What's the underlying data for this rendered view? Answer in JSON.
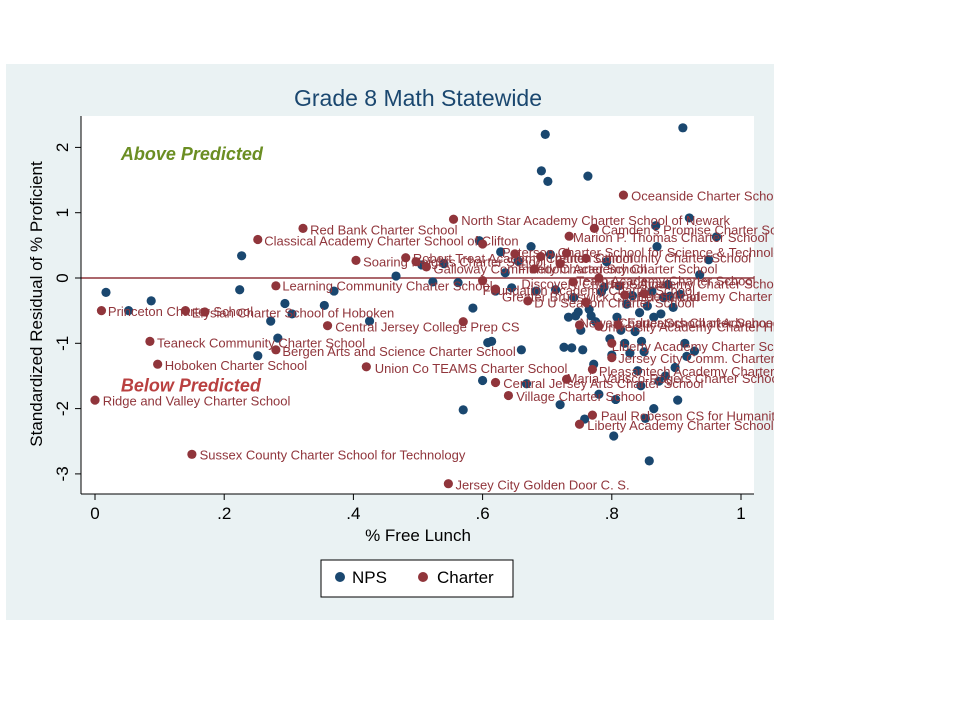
{
  "chart_data": {
    "type": "scatter",
    "title": "Grade 8 Math Statewide",
    "xlabel": "% Free Lunch",
    "ylabel": "Standardized Residual of % Proficient",
    "xlim": [
      0,
      1
    ],
    "ylim": [
      -3.2,
      2.5
    ],
    "xticks": [
      0,
      0.2,
      0.4,
      0.6,
      0.8,
      1
    ],
    "xtick_labels": [
      "0",
      ".2",
      ".4",
      ".6",
      ".8",
      "1"
    ],
    "yticks": [
      -3,
      -2,
      -1,
      0,
      1,
      2
    ],
    "ytick_labels": [
      "-3",
      "-2",
      "-1",
      "0",
      "1",
      "2"
    ],
    "grid": false,
    "reference_line_y": 0,
    "colors": {
      "NPS": "#1a476f",
      "Charter": "#90353b",
      "refline": "#90353b",
      "annotation": "#6b8e23",
      "annotation_below": "#b94040"
    },
    "annotations": [
      {
        "text": "Above Predicted",
        "x": 0.04,
        "y": 1.9,
        "color": "#6b8e23"
      },
      {
        "text": "Below Predicted",
        "x": 0.04,
        "y": -1.65,
        "color": "#b94040"
      }
    ],
    "legend": {
      "position": "bottom",
      "entries": [
        "NPS",
        "Charter"
      ]
    },
    "series": [
      {
        "name": "NPS",
        "points": [
          [
            0.017,
            -0.22
          ],
          [
            0.052,
            -0.5
          ],
          [
            0.087,
            -0.35
          ],
          [
            0.227,
            0.34
          ],
          [
            0.224,
            -0.18
          ],
          [
            0.272,
            -0.66
          ],
          [
            0.283,
            -0.92
          ],
          [
            0.252,
            -1.19
          ],
          [
            0.294,
            -0.39
          ],
          [
            0.305,
            -0.55
          ],
          [
            0.355,
            -0.42
          ],
          [
            0.37,
            -0.2
          ],
          [
            0.425,
            -0.66
          ],
          [
            0.466,
            0.03
          ],
          [
            0.506,
            0.2
          ],
          [
            0.523,
            -0.06
          ],
          [
            0.54,
            0.22
          ],
          [
            0.562,
            -0.07
          ],
          [
            0.57,
            -2.02
          ],
          [
            0.585,
            -0.46
          ],
          [
            0.595,
            0.57
          ],
          [
            0.6,
            -1.57
          ],
          [
            0.608,
            -0.99
          ],
          [
            0.614,
            -0.97
          ],
          [
            0.62,
            -0.2
          ],
          [
            0.628,
            0.4
          ],
          [
            0.635,
            0.08
          ],
          [
            0.645,
            -0.15
          ],
          [
            0.655,
            0.26
          ],
          [
            0.66,
            -1.1
          ],
          [
            0.668,
            -1.62
          ],
          [
            0.675,
            0.48
          ],
          [
            0.683,
            -0.2
          ],
          [
            0.691,
            1.64
          ],
          [
            0.697,
            2.2
          ],
          [
            0.701,
            1.48
          ],
          [
            0.705,
            0.36
          ],
          [
            0.713,
            -0.18
          ],
          [
            0.72,
            -1.94
          ],
          [
            0.726,
            -1.06
          ],
          [
            0.733,
            -0.6
          ],
          [
            0.738,
            -1.07
          ],
          [
            0.741,
            -0.3
          ],
          [
            0.744,
            -0.58
          ],
          [
            0.748,
            -0.52
          ],
          [
            0.752,
            -0.8
          ],
          [
            0.755,
            -1.1
          ],
          [
            0.758,
            -2.16
          ],
          [
            0.763,
            1.56
          ],
          [
            0.765,
            -0.48
          ],
          [
            0.768,
            -0.58
          ],
          [
            0.772,
            -1.32
          ],
          [
            0.775,
            -0.67
          ],
          [
            0.78,
            -1.78
          ],
          [
            0.784,
            -0.21
          ],
          [
            0.788,
            -0.14
          ],
          [
            0.792,
            0.25
          ],
          [
            0.797,
            -0.93
          ],
          [
            0.8,
            -1.18
          ],
          [
            0.803,
            -2.42
          ],
          [
            0.806,
            -1.86
          ],
          [
            0.808,
            -0.6
          ],
          [
            0.811,
            -0.12
          ],
          [
            0.814,
            -0.8
          ],
          [
            0.82,
            -1.0
          ],
          [
            0.823,
            -0.4
          ],
          [
            0.828,
            -1.15
          ],
          [
            0.832,
            -0.27
          ],
          [
            0.836,
            -0.82
          ],
          [
            0.84,
            -1.42
          ],
          [
            0.843,
            -0.53
          ],
          [
            0.846,
            -0.97
          ],
          [
            0.85,
            -1.13
          ],
          [
            0.852,
            -2.15
          ],
          [
            0.855,
            -0.43
          ],
          [
            0.858,
            -2.8
          ],
          [
            0.862,
            -0.2
          ],
          [
            0.865,
            -0.6
          ],
          [
            0.868,
            0.8
          ],
          [
            0.87,
            0.48
          ],
          [
            0.873,
            -1.58
          ],
          [
            0.876,
            -0.55
          ],
          [
            0.88,
            -0.3
          ],
          [
            0.883,
            -1.5
          ],
          [
            0.887,
            -0.1
          ],
          [
            0.89,
            -0.28
          ],
          [
            0.895,
            -0.45
          ],
          [
            0.898,
            -1.37
          ],
          [
            0.902,
            -1.87
          ],
          [
            0.906,
            -0.25
          ],
          [
            0.91,
            2.3
          ],
          [
            0.913,
            -1.0
          ],
          [
            0.916,
            -1.2
          ],
          [
            0.92,
            0.92
          ],
          [
            0.928,
            -1.12
          ],
          [
            0.936,
            0.05
          ],
          [
            0.95,
            0.28
          ],
          [
            0.962,
            0.63
          ],
          [
            0.865,
            -2.0
          ],
          [
            0.845,
            -1.65
          ]
        ]
      },
      {
        "name": "Charter",
        "points": [
          [
            0.818,
            1.27
          ],
          [
            0.555,
            0.9
          ],
          [
            0.322,
            0.76
          ],
          [
            0.773,
            0.76
          ],
          [
            0.252,
            0.59
          ],
          [
            0.734,
            0.64
          ],
          [
            0.6,
            0.52
          ],
          [
            0.404,
            0.27
          ],
          [
            0.481,
            0.31
          ],
          [
            0.497,
            0.25
          ],
          [
            0.513,
            0.17
          ],
          [
            0.65,
            0.37
          ],
          [
            0.69,
            0.33
          ],
          [
            0.73,
            0.38
          ],
          [
            0.76,
            0.3
          ],
          [
            0.68,
            0.14
          ],
          [
            0.72,
            0.22
          ],
          [
            0.28,
            -0.12
          ],
          [
            0.6,
            -0.04
          ],
          [
            0.62,
            -0.17
          ],
          [
            0.74,
            -0.06
          ],
          [
            0.78,
            0.0
          ],
          [
            0.67,
            -0.35
          ],
          [
            0.76,
            -0.37
          ],
          [
            0.82,
            -0.26
          ],
          [
            0.85,
            -0.24
          ],
          [
            0.01,
            -0.5
          ],
          [
            0.14,
            -0.5
          ],
          [
            0.17,
            -0.52
          ],
          [
            0.57,
            -0.67
          ],
          [
            0.75,
            -0.72
          ],
          [
            0.78,
            -0.74
          ],
          [
            0.81,
            -0.72
          ],
          [
            0.36,
            -0.73
          ],
          [
            0.085,
            -0.97
          ],
          [
            0.28,
            -1.1
          ],
          [
            0.097,
            -1.32
          ],
          [
            0.42,
            -1.36
          ],
          [
            0.8,
            -1.0
          ],
          [
            0.8,
            -1.22
          ],
          [
            0.77,
            -1.4
          ],
          [
            0.62,
            -1.6
          ],
          [
            0.64,
            -1.8
          ],
          [
            0.73,
            -1.55
          ],
          [
            0.77,
            -2.1
          ],
          [
            0.75,
            -2.24
          ],
          [
            0.0,
            -1.87
          ],
          [
            0.15,
            -2.7
          ],
          [
            0.547,
            -3.15
          ]
        ]
      }
    ],
    "point_labels": [
      {
        "text": "Oceanside Charter School",
        "x": 0.83,
        "y": 1.25
      },
      {
        "text": "North Star Academy Charter School of Newark",
        "x": 0.567,
        "y": 0.87
      },
      {
        "text": "Red Bank Charter School",
        "x": 0.333,
        "y": 0.73
      },
      {
        "text": "Camden's Promise Charter School",
        "x": 0.784,
        "y": 0.73
      },
      {
        "text": "Classical Academy Charter School of Clifton",
        "x": 0.262,
        "y": 0.56
      },
      {
        "text": "Marion P. Thomas Charter School",
        "x": 0.74,
        "y": 0.61
      },
      {
        "text": "Paterson Charter School for Science & Technology",
        "x": 0.63,
        "y": 0.38
      },
      {
        "text": "Trenton Community Charter School",
        "x": 0.7,
        "y": 0.3
      },
      {
        "text": "Soaring Heights Charter School",
        "x": 0.415,
        "y": 0.24
      },
      {
        "text": "Robert Treat Academy Charter School",
        "x": 0.492,
        "y": 0.29
      },
      {
        "text": "Galloway Community Charter School",
        "x": 0.524,
        "y": 0.13
      },
      {
        "text": "Freedom Academy Charter School",
        "x": 0.655,
        "y": 0.13
      },
      {
        "text": "Learning Community Charter School",
        "x": 0.29,
        "y": -0.13
      },
      {
        "text": "Discovery Charter School",
        "x": 0.66,
        "y": -0.1
      },
      {
        "text": "Foundation Academy Charter School",
        "x": 0.6,
        "y": -0.2
      },
      {
        "text": "Greater Brunswick Charter School",
        "x": 0.63,
        "y": -0.3
      },
      {
        "text": "Team Academy Charter School",
        "x": 0.745,
        "y": -0.05
      },
      {
        "text": "Hope Academy Charter School",
        "x": 0.79,
        "y": -0.1
      },
      {
        "text": "Eden Academy Charter School",
        "x": 0.84,
        "y": -0.29
      },
      {
        "text": "D U Season Charter School",
        "x": 0.68,
        "y": -0.39
      },
      {
        "text": "Princeton Charter School",
        "x": 0.02,
        "y": -0.52
      },
      {
        "text": "Elysian Charter School of Hoboken",
        "x": 0.15,
        "y": -0.54
      },
      {
        "text": "Central Jersey College Prep CS",
        "x": 0.372,
        "y": -0.76
      },
      {
        "text": "University Academy Charter High School",
        "x": 0.78,
        "y": -0.76
      },
      {
        "text": "Newark Educators Charter School",
        "x": 0.75,
        "y": -0.7
      },
      {
        "text": "Charter School of Advanced Studies",
        "x": 0.81,
        "y": -0.7
      },
      {
        "text": "Teaneck Community Charter School",
        "x": 0.096,
        "y": -1.0
      },
      {
        "text": "Bergen Arts and Science Charter School",
        "x": 0.29,
        "y": -1.13
      },
      {
        "text": "Liberty Academy Charter School",
        "x": 0.8,
        "y": -1.06
      },
      {
        "text": "Hoboken Charter School",
        "x": 0.108,
        "y": -1.35
      },
      {
        "text": "Union Co TEAMS Charter School",
        "x": 0.433,
        "y": -1.39
      },
      {
        "text": "Jersey City Comm. Charter School",
        "x": 0.81,
        "y": -1.24
      },
      {
        "text": "Pleasantech Academy Charter School",
        "x": 0.78,
        "y": -1.44
      },
      {
        "text": "Maria Varisco-Rogers Charter School",
        "x": 0.73,
        "y": -1.55
      },
      {
        "text": "Central Jersey Arts Charter School",
        "x": 0.632,
        "y": -1.62
      },
      {
        "text": "Village Charter School",
        "x": 0.652,
        "y": -1.82
      },
      {
        "text": "Ridge and Valley Charter School",
        "x": 0.012,
        "y": -1.89
      },
      {
        "text": "Paul Robeson CS for Humanities",
        "x": 0.783,
        "y": -2.12
      },
      {
        "text": "Liberty Academy Charter School",
        "x": 0.762,
        "y": -2.27
      },
      {
        "text": "Sussex County Charter School for Technology",
        "x": 0.162,
        "y": -2.72
      },
      {
        "text": "Jersey City Golden Door C. S.",
        "x": 0.558,
        "y": -3.18
      }
    ]
  }
}
